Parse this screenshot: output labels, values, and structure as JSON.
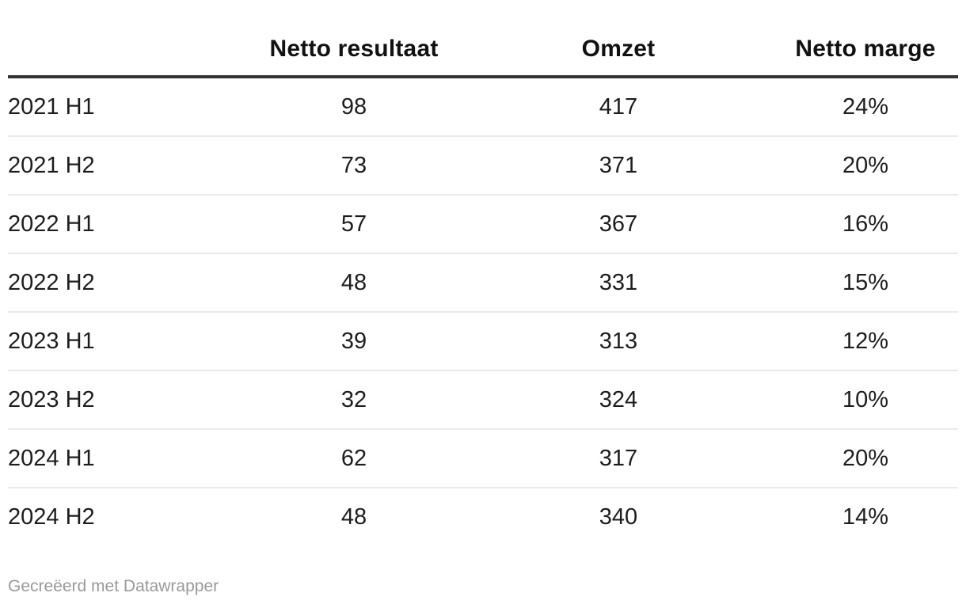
{
  "colors": {
    "background": "#ffffff",
    "header_text": "#111111",
    "body_text": "#1d1d1d",
    "header_rule": "#333333",
    "row_divider": "#eaeaea",
    "attribution_text": "#999999"
  },
  "table": {
    "columns": [
      {
        "label": "",
        "align": "left"
      },
      {
        "label": "Netto resultaat",
        "align": "center"
      },
      {
        "label": "Omzet",
        "align": "center"
      },
      {
        "label": "Netto marge",
        "align": "center"
      }
    ],
    "rows": [
      {
        "cells": [
          "2021 H1",
          "98",
          "417",
          "24%"
        ]
      },
      {
        "cells": [
          "2021 H2",
          "73",
          "371",
          "20%"
        ]
      },
      {
        "cells": [
          "2022 H1",
          "57",
          "367",
          "16%"
        ]
      },
      {
        "cells": [
          "2022 H2",
          "48",
          "331",
          "15%"
        ]
      },
      {
        "cells": [
          "2023 H1",
          "39",
          "313",
          "12%"
        ]
      },
      {
        "cells": [
          "2023 H2",
          "32",
          "324",
          "10%"
        ]
      },
      {
        "cells": [
          "2024 H1",
          "62",
          "317",
          "20%"
        ]
      },
      {
        "cells": [
          "2024 H2",
          "48",
          "340",
          "14%"
        ]
      }
    ]
  },
  "footer": {
    "created_with": "Gecreëerd met ",
    "brand_link": "Datawrapper"
  },
  "chart_data": {
    "type": "table",
    "columns": [
      "",
      "Netto resultaat",
      "Omzet",
      "Netto marge"
    ],
    "rows": [
      [
        "2021 H1",
        98,
        417,
        "24%"
      ],
      [
        "2021 H2",
        73,
        371,
        "20%"
      ],
      [
        "2022 H1",
        57,
        367,
        "16%"
      ],
      [
        "2022 H2",
        48,
        331,
        "15%"
      ],
      [
        "2023 H1",
        39,
        313,
        "12%"
      ],
      [
        "2023 H2",
        32,
        324,
        "10%"
      ],
      [
        "2024 H1",
        62,
        317,
        "20%"
      ],
      [
        "2024 H2",
        48,
        340,
        "14%"
      ]
    ],
    "footer": "Gecreëerd met Datawrapper"
  }
}
